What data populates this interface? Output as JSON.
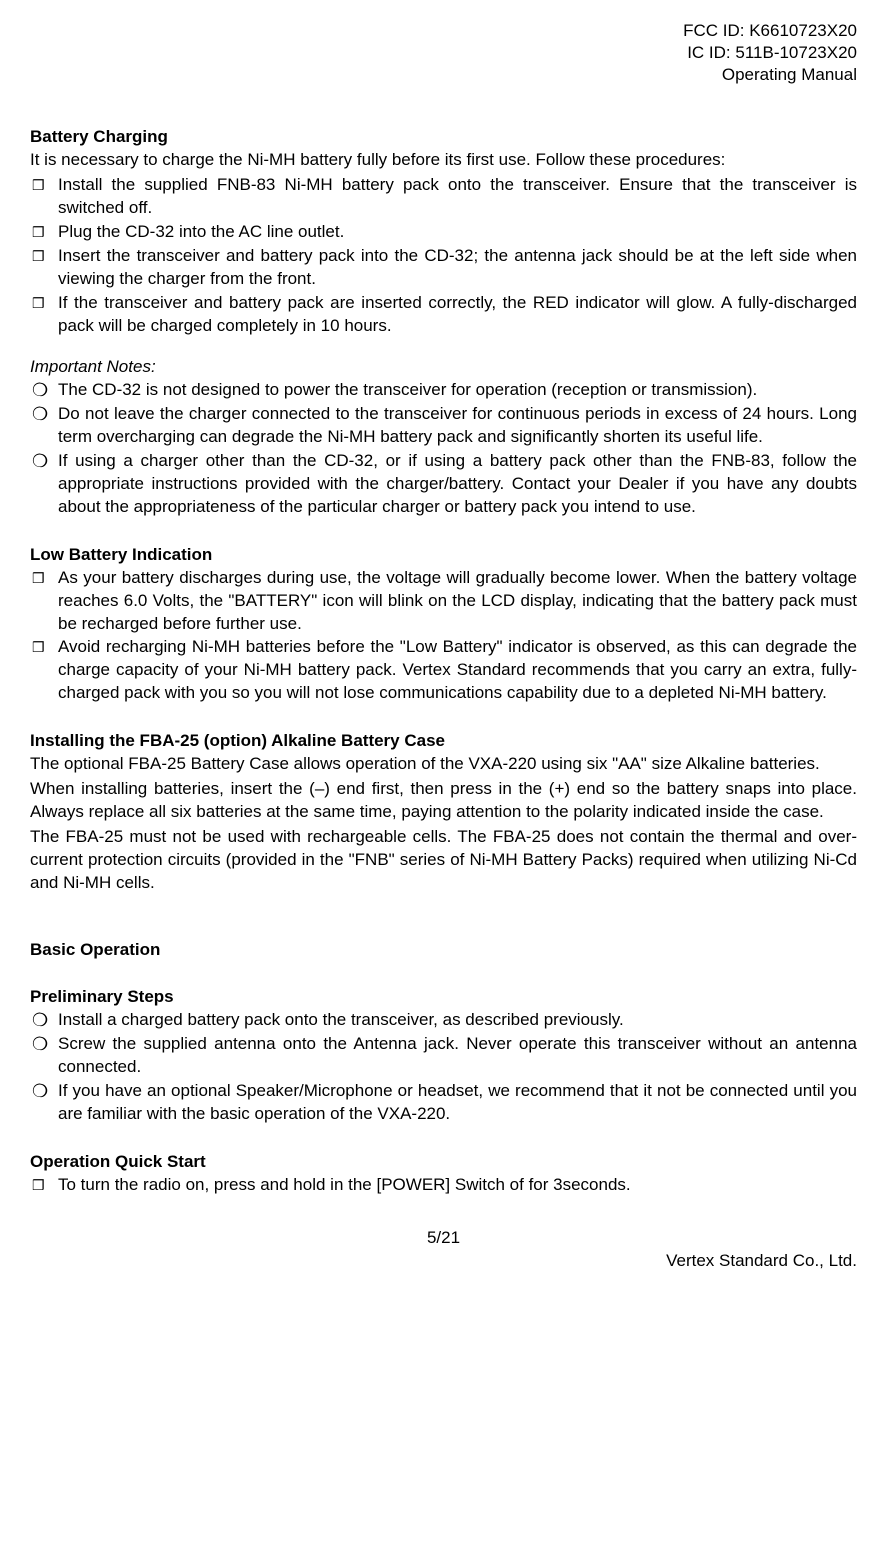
{
  "header": {
    "fcc": "FCC ID: K6610723X20",
    "ic": "IC ID: 511B-10723X20",
    "doc": "Operating Manual"
  },
  "sections": {
    "battery_charging": {
      "title": "Battery Charging",
      "intro": "It is necessary to charge the Ni-MH battery fully before its first use. Follow these procedures:",
      "items": [
        "Install the supplied FNB-83 Ni-MH battery pack onto the transceiver. Ensure that the transceiver is switched off.",
        "Plug the CD-32 into the AC line outlet.",
        "Insert the transceiver and battery pack into the CD-32; the antenna jack should be at the left side when viewing the charger from the front.",
        "If the transceiver and battery pack are inserted correctly, the RED indicator will glow. A fully-discharged pack will be charged completely in 10 hours."
      ]
    },
    "important_notes": {
      "title": "Important Notes:",
      "items": [
        "The CD-32 is not designed to power the transceiver for operation (reception or transmission).",
        "Do not leave the charger connected to the transceiver for continuous periods in excess of 24 hours. Long term overcharging can degrade the Ni-MH battery pack and significantly shorten its useful life.",
        "If using a charger other than the CD-32, or if using a battery pack other than the FNB-83, follow the appropriate instructions provided with the charger/battery. Contact your Dealer if you have any doubts about the appropriateness of the particular charger or battery pack you intend to use."
      ]
    },
    "low_battery": {
      "title": "Low Battery Indication",
      "items": [
        "As your battery discharges during use, the voltage will gradually become lower. When the battery voltage reaches 6.0 Volts, the \"BATTERY\" icon will blink on the LCD display, indicating that the battery pack must be recharged before further use.",
        "Avoid recharging Ni-MH batteries before the \"Low Battery\" indicator is observed, as this can degrade the charge capacity of your Ni-MH battery pack. Vertex Standard recommends that you carry an extra, fully-charged pack with you so you will not lose communications capability due to a depleted Ni-MH battery."
      ]
    },
    "fba25": {
      "title": "Installing the FBA-25 (option) Alkaline Battery Case",
      "p1": "The optional FBA-25 Battery Case allows operation of the VXA-220 using six \"AA\" size Alkaline batteries.",
      "p2": "When installing batteries, insert the (–) end first, then press in the (+) end so the battery snaps into place. Always replace all six batteries at the same time, paying attention to the polarity indicated inside the case.",
      "p3": "The FBA-25 must not be used with rechargeable cells. The FBA-25 does not contain the thermal and over-current protection circuits (provided in the \"FNB\" series of Ni-MH Battery Packs) required when utilizing Ni-Cd and Ni-MH cells."
    },
    "basic_op": {
      "title": "Basic Operation"
    },
    "prelim": {
      "title": "Preliminary Steps",
      "items": [
        "Install a charged battery pack onto the transceiver, as described previously.",
        "Screw the supplied antenna onto the Antenna jack. Never operate this transceiver without an antenna connected.",
        "If you have an optional Speaker/Microphone or headset, we recommend that it not be connected until you are familiar with the basic operation of the VXA-220."
      ]
    },
    "quick_start": {
      "title": "Operation Quick Start",
      "items": [
        "To turn the radio on, press and hold in the [POWER] Switch of for 3seconds."
      ]
    }
  },
  "footer": {
    "page": "5/21",
    "company": "Vertex Standard Co., Ltd."
  },
  "style": {
    "box_marker": "❒",
    "circle_marker": "❍"
  }
}
